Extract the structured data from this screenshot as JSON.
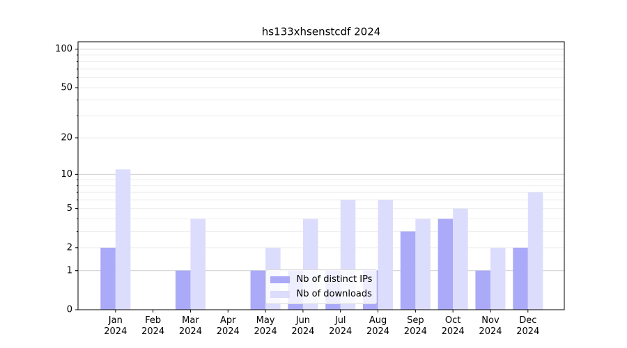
{
  "chart_data": {
    "type": "bar",
    "title": "hs133xhsenstcdf 2024",
    "categories": [
      "Jan\n2024",
      "Feb\n2024",
      "Mar\n2024",
      "Apr\n2024",
      "May\n2024",
      "Jun\n2024",
      "Jul\n2024",
      "Aug\n2024",
      "Sep\n2024",
      "Oct\n2024",
      "Nov\n2024",
      "Dec\n2024"
    ],
    "series": [
      {
        "name": "Nb of distinct IPs",
        "color": "#aaaaf8",
        "values": [
          2,
          0,
          1,
          0,
          1,
          1,
          1,
          1,
          3,
          4,
          1,
          2
        ]
      },
      {
        "name": "Nb of downloads",
        "color": "#dcdcfc",
        "values": [
          11,
          0,
          4,
          0,
          2,
          4,
          6,
          6,
          4,
          5,
          2,
          7
        ]
      }
    ],
    "yscale": "log1p",
    "ylim": [
      0,
      114
    ],
    "yticks": [
      0,
      1,
      2,
      5,
      10,
      20,
      50,
      100
    ],
    "grid_values": [
      1,
      2,
      3,
      4,
      5,
      6,
      7,
      8,
      9,
      10,
      20,
      30,
      40,
      50,
      60,
      70,
      80,
      90,
      100
    ],
    "legend": "lower center"
  }
}
